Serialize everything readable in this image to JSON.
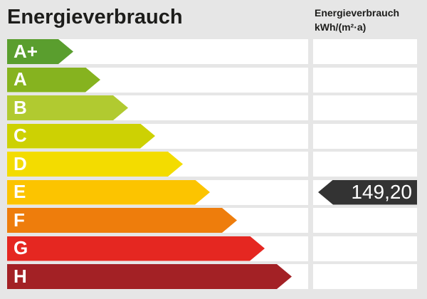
{
  "header": {
    "title": "Energieverbrauch",
    "unit_line1": "Energieverbrauch",
    "unit_line2": "kWh/(m²·a)"
  },
  "scale": {
    "rows": [
      {
        "grade": "A+",
        "color": "#5a9e2e",
        "arrow_width": 93
      },
      {
        "grade": "A",
        "color": "#86b31f",
        "arrow_width": 131
      },
      {
        "grade": "B",
        "color": "#b1ca30",
        "arrow_width": 170
      },
      {
        "grade": "C",
        "color": "#cdd103",
        "arrow_width": 208
      },
      {
        "grade": "D",
        "color": "#f3dc00",
        "arrow_width": 247
      },
      {
        "grade": "E",
        "color": "#fcc400",
        "arrow_width": 285
      },
      {
        "grade": "F",
        "color": "#ee7d0c",
        "arrow_width": 323
      },
      {
        "grade": "G",
        "color": "#e52721",
        "arrow_width": 362
      },
      {
        "grade": "H",
        "color": "#a32125",
        "arrow_width": 400
      }
    ]
  },
  "value": {
    "text": "149,20",
    "grade": "E",
    "row_index": 5,
    "tag_color": "#333333"
  },
  "colors": {
    "background": "#e6e6e6",
    "band": "#ffffff",
    "text": "#1d1d1b",
    "grade_text": "#ffffff",
    "value_text": "#ffffff"
  },
  "chart_data": {
    "type": "bar",
    "title": "Energieverbrauch",
    "ylabel": "Energieverbrauch kWh/(m²·a)",
    "categories": [
      "A+",
      "A",
      "B",
      "C",
      "D",
      "E",
      "F",
      "G",
      "H"
    ],
    "values": [
      93,
      131,
      170,
      208,
      247,
      285,
      323,
      362,
      400
    ],
    "bar_colors": [
      "#5a9e2e",
      "#86b31f",
      "#b1ca30",
      "#cdd103",
      "#f3dc00",
      "#fcc400",
      "#ee7d0c",
      "#e52721",
      "#a32125"
    ],
    "marker": {
      "category": "E",
      "value": 149.2,
      "label": "149,20"
    },
    "legend": "none",
    "grid": "off"
  }
}
